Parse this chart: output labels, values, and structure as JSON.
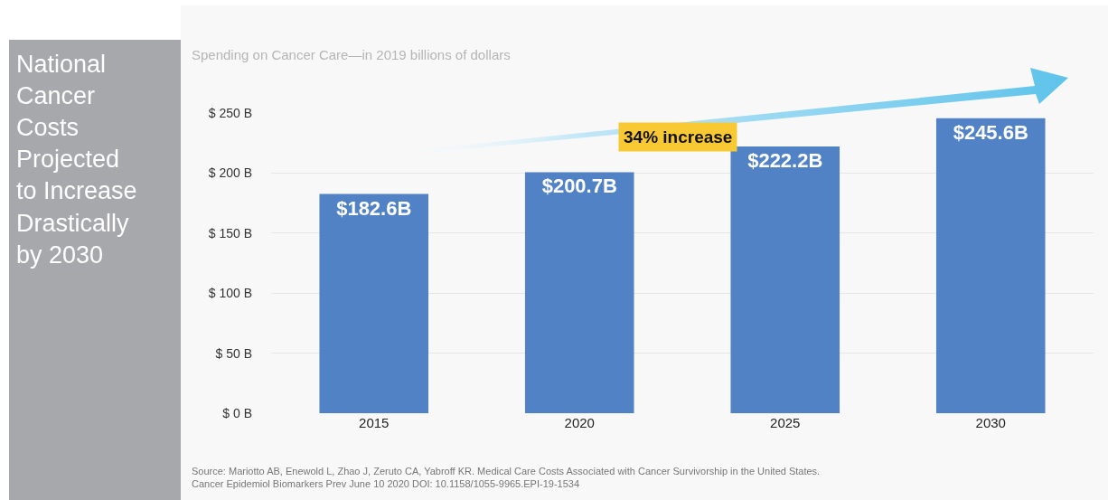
{
  "chart_data": {
    "type": "bar",
    "title": "National\nCancer\nCosts\nProjected\nto Increase\nDrastically\nby 2030",
    "subtitle": "Spending on Cancer Care—in 2019 billions of dollars",
    "categories": [
      "2015",
      "2020",
      "2025",
      "2030"
    ],
    "values": [
      182.6,
      200.7,
      222.2,
      245.6
    ],
    "value_labels": [
      "$182.6B",
      "$200.7B",
      "$222.2B",
      "$245.6B"
    ],
    "color": "#5182c6",
    "ylim": [
      0,
      250
    ],
    "yticks": [
      {
        "value": 0,
        "label": "$ 0 B"
      },
      {
        "value": 50,
        "label": "$ 50 B"
      },
      {
        "value": 100,
        "label": "$ 100 B"
      },
      {
        "value": 150,
        "label": "$ 150 B"
      },
      {
        "value": 200,
        "label": "$ 200 B"
      },
      {
        "value": 250,
        "label": "$ 250 B"
      }
    ],
    "grid": "y",
    "annotations": [
      "34% increase",
      "Source: Mariotto AB, Enewold L, Zhao J, Zeruto CA, Yabroff KR. Medical Care Costs Associated with Cancer Survivorship in the United States.\nCancer Epidemiol Biomarkers Prev June 10 2020 DOI: 10.1158/1055-9965.EPI-19-1534"
    ]
  }
}
